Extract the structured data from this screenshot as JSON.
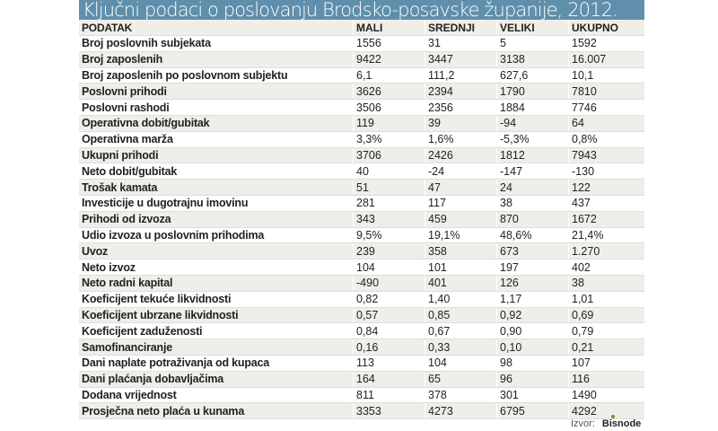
{
  "title": "Ključni podaci o poslovanju Brodsko-posavske županije, 2012.",
  "headers": [
    "PODATAK",
    "MALI",
    "SREDNJI",
    "VELIKI",
    "UKUPNO"
  ],
  "rows": [
    [
      "Broj poslovnih subjekata",
      "1556",
      "31",
      "5",
      "1592"
    ],
    [
      "Broj zaposlenih",
      "9422",
      "3447",
      "3138",
      "16.007"
    ],
    [
      "Broj zaposlenih po poslovnom subjektu",
      "6,1",
      "111,2",
      "627,6",
      "10,1"
    ],
    [
      "Poslovni prihodi",
      "3626",
      "2394",
      "1790",
      "7810"
    ],
    [
      "Poslovni rashodi",
      "3506",
      "2356",
      "1884",
      "7746"
    ],
    [
      "Operativna dobit/gubitak",
      "119",
      "39",
      "-94",
      "64"
    ],
    [
      "Operativna marža",
      "3,3%",
      "1,6%",
      "-5,3%",
      "0,8%"
    ],
    [
      "Ukupni prihodi",
      "3706",
      "2426",
      "1812",
      "7943"
    ],
    [
      "Neto dobit/gubitak",
      "40",
      "-24",
      "-147",
      "-130"
    ],
    [
      "Trošak kamata",
      "51",
      "47",
      "24",
      "122"
    ],
    [
      "Investicije u dugotrajnu imovinu",
      "281",
      "117",
      "38",
      "437"
    ],
    [
      "Prihodi od izvoza",
      "343",
      "459",
      "870",
      "1672"
    ],
    [
      "Udio izvoza u poslovnim prihodima",
      "9,5%",
      "19,1%",
      "48,6%",
      "21,4%"
    ],
    [
      "Uvoz",
      "239",
      "358",
      "673",
      "1.270"
    ],
    [
      "Neto izvoz",
      "104",
      "101",
      "197",
      "402"
    ],
    [
      "Neto radni kapital",
      "-490",
      "401",
      "126",
      "38"
    ],
    [
      "Koeficijent tekuće likvidnosti",
      "0,82",
      "1,40",
      "1,17",
      "1,01"
    ],
    [
      "Koeficijent ubrzane likvidnosti",
      "0,57",
      "0,85",
      "0,92",
      "0,69"
    ],
    [
      "Koeficijent zaduženosti",
      "0,84",
      "0,67",
      "0,90",
      "0,79"
    ],
    [
      "Samofinanciranje",
      "0,16",
      "0,33",
      "0,10",
      "0,21"
    ],
    [
      "Dani naplate potraživanja od kupaca",
      "113",
      "104",
      "98",
      "107"
    ],
    [
      "Dani plaćanja dobavljačima",
      "164",
      "65",
      "96",
      "116"
    ],
    [
      "Dodana vrijednost",
      "811",
      "378",
      "301",
      "1490"
    ],
    [
      "Prosječna neto plaća u kunama",
      "3353",
      "4273",
      "6795",
      "4292"
    ]
  ],
  "source": {
    "label": "Izvor:",
    "logo": "Bisnode"
  },
  "colors": {
    "title_bar": "#5f8fab",
    "row_alt": "#efeee9"
  }
}
